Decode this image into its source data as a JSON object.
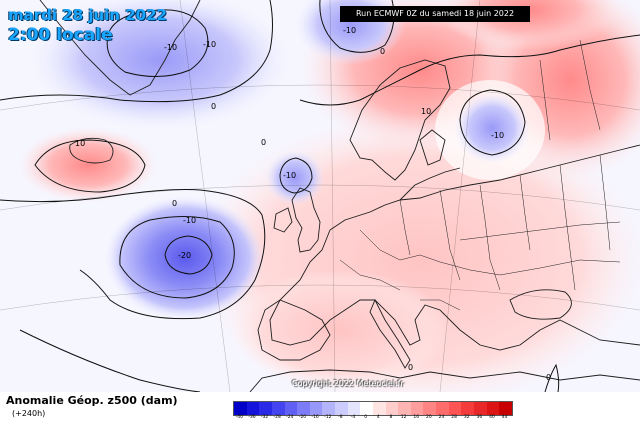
{
  "header": {
    "date": "mardi 28 juin 2022",
    "time": "2:00 locale",
    "run": "Run ECMWF 0Z du samedi 18 juin 2022"
  },
  "map": {
    "copyright": "Copyright 2022 Meteociel.fr",
    "contour_labels": [
      "-10",
      "-10",
      "-10",
      "-10",
      "-10",
      "-10",
      "-20",
      "10",
      "10",
      "0",
      "0",
      "0",
      "0",
      "0",
      "0"
    ],
    "colors": {
      "negative": "#7b7bff",
      "positive": "#ff7b7b",
      "land_line": "#222222"
    }
  },
  "legend": {
    "title": "Anomalie Géop. z500 (dam)",
    "subtitle": "(+240h)",
    "scale_values": [
      "-40",
      "-36",
      "-32",
      "-28",
      "-24",
      "-20",
      "-16",
      "-12",
      "-8",
      "-4",
      "0",
      "4",
      "8",
      "12",
      "16",
      "20",
      "24",
      "28",
      "32",
      "36",
      "40",
      "44"
    ],
    "scale_colors": [
      "#0000c8",
      "#1414dc",
      "#2a2ae8",
      "#4444f0",
      "#6060f4",
      "#7c7cf8",
      "#9898fa",
      "#b4b4fc",
      "#ccccfe",
      "#e4e4ff",
      "#ffffff",
      "#ffe4e4",
      "#ffcccc",
      "#ffb4b4",
      "#ff9c9c",
      "#ff8484",
      "#ff6c6c",
      "#ff5454",
      "#f43c3c",
      "#e82828",
      "#dc1414",
      "#c80000"
    ]
  }
}
